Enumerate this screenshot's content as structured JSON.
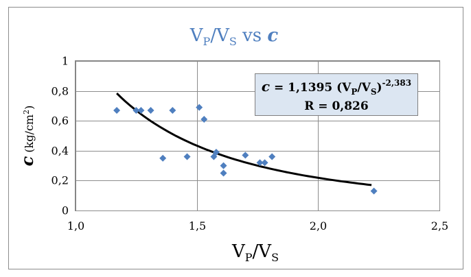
{
  "chart_data": {
    "type": "scatter",
    "title": {
      "main": "V",
      "sub1": "P",
      "slash": "/V",
      "sub2": "S",
      "mid": " vs ",
      "var": "c"
    },
    "xlabel": {
      "main": "V",
      "sub1": "P",
      "slash": "/V",
      "sub2": "S"
    },
    "ylabel": {
      "var": "c",
      "rest": " (kg/cm",
      "sup": "2",
      "close": ")"
    },
    "xlim": [
      1.0,
      2.5
    ],
    "ylim": [
      0,
      1
    ],
    "x_ticks": [
      {
        "value": 1.0,
        "label": "1,0"
      },
      {
        "value": 1.5,
        "label": "1,5"
      },
      {
        "value": 2.0,
        "label": "2,0"
      },
      {
        "value": 2.5,
        "label": "2,5"
      }
    ],
    "y_ticks": [
      {
        "value": 0,
        "label": "0"
      },
      {
        "value": 0.2,
        "label": "0,2"
      },
      {
        "value": 0.4,
        "label": "0,4"
      },
      {
        "value": 0.6,
        "label": "0,6"
      },
      {
        "value": 0.8,
        "label": "0,8"
      },
      {
        "value": 1.0,
        "label": "1"
      }
    ],
    "grid": {
      "x": true,
      "y": true
    },
    "points": [
      {
        "x": 1.17,
        "y": 0.67
      },
      {
        "x": 1.25,
        "y": 0.67
      },
      {
        "x": 1.27,
        "y": 0.67
      },
      {
        "x": 1.31,
        "y": 0.67
      },
      {
        "x": 1.36,
        "y": 0.35
      },
      {
        "x": 1.4,
        "y": 0.67
      },
      {
        "x": 1.46,
        "y": 0.36
      },
      {
        "x": 1.51,
        "y": 0.69
      },
      {
        "x": 1.53,
        "y": 0.61
      },
      {
        "x": 1.57,
        "y": 0.36
      },
      {
        "x": 1.58,
        "y": 0.39
      },
      {
        "x": 1.61,
        "y": 0.3
      },
      {
        "x": 1.61,
        "y": 0.25
      },
      {
        "x": 1.7,
        "y": 0.37
      },
      {
        "x": 1.76,
        "y": 0.32
      },
      {
        "x": 1.78,
        "y": 0.32
      },
      {
        "x": 1.81,
        "y": 0.36
      },
      {
        "x": 2.23,
        "y": 0.13
      }
    ],
    "trendline": {
      "coefficient": 1.1395,
      "exponent": -2.383,
      "x_range": [
        1.17,
        2.22
      ]
    },
    "equation": {
      "var": "c",
      "eq": " = 1,1395 (V",
      "sub1": "P",
      "slash": "/V",
      "sub2": "S",
      "close": ")",
      "exp": "-2,383",
      "r_line": "R = 0,826"
    },
    "colors": {
      "points": "#4f7fbf",
      "title": "#4f7fbf",
      "equation_box": "#dce6f2",
      "trendline": "#000000"
    }
  }
}
